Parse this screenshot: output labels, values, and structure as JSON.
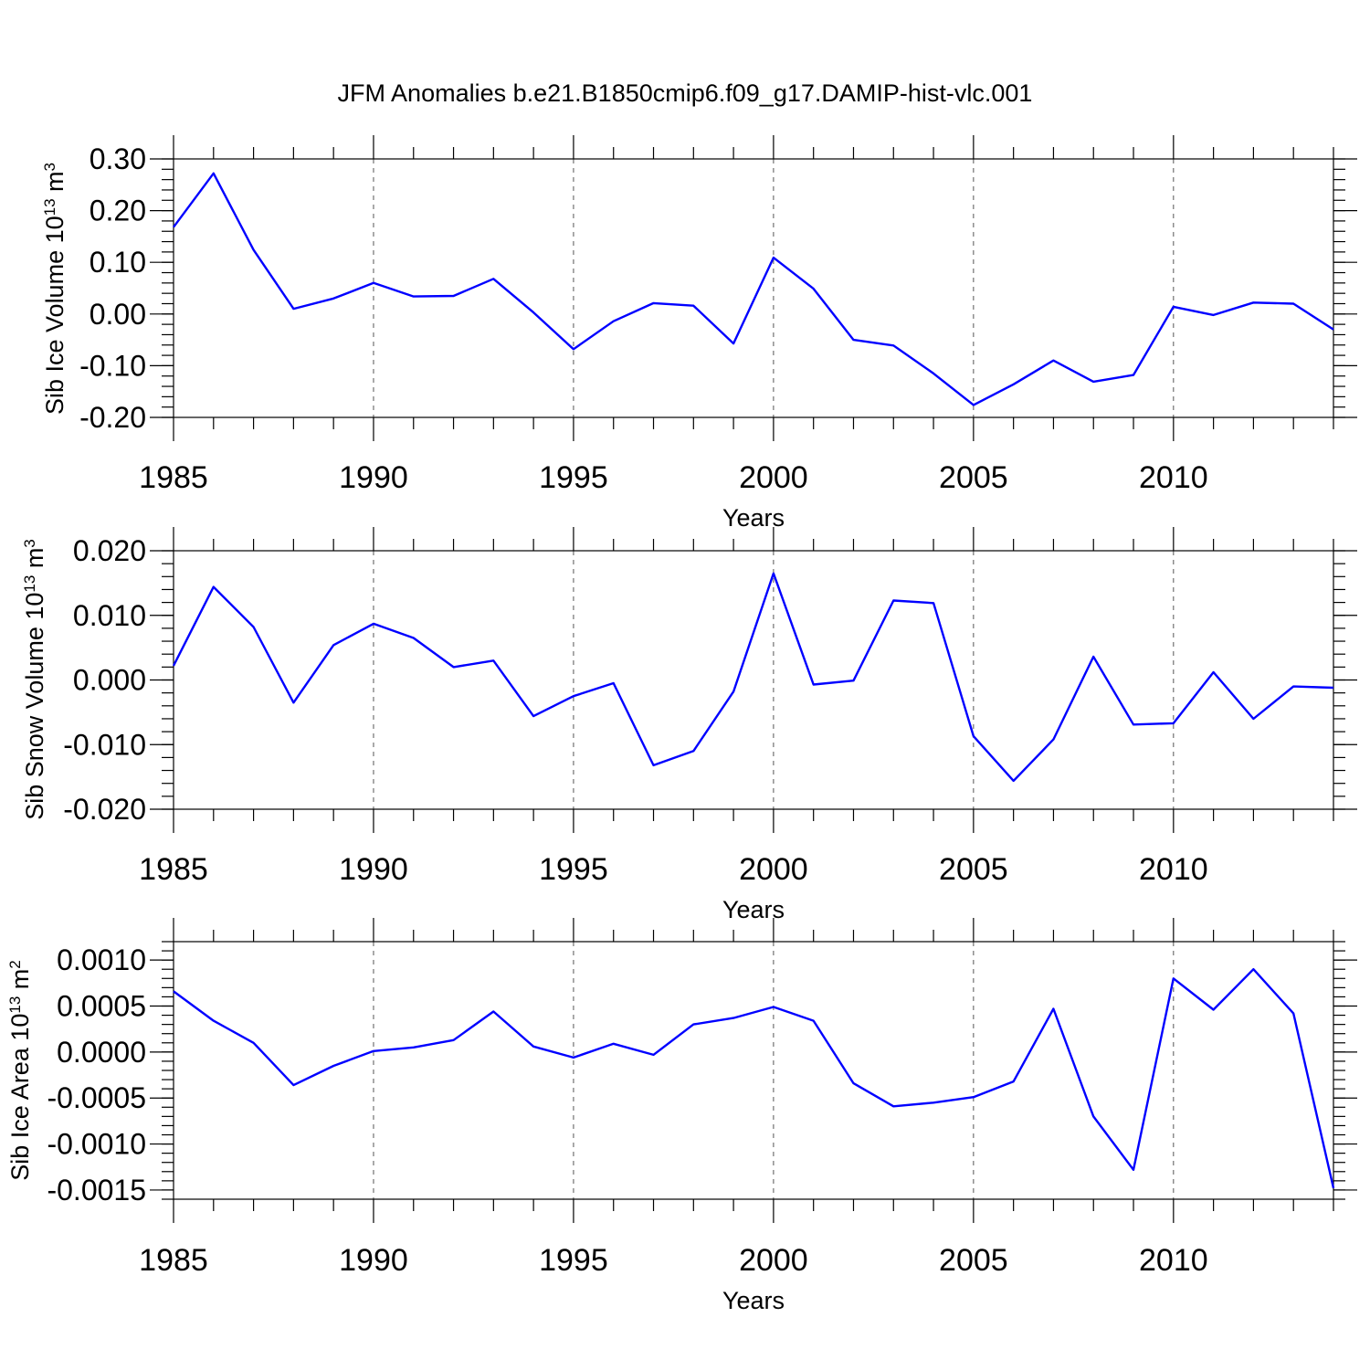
{
  "colors": {
    "line": "#0000ff",
    "axis": "#000000",
    "grid": "#555555"
  },
  "chart_data": [
    {
      "type": "line",
      "title": "JFM Anomalies b.e21.B1850cmip6.f09_g17.DAMIP-hist-vlc.001",
      "ylabel": "Sib Ice Volume 10",
      "ylabel_sup": "13",
      "ylabel_unit": " m",
      "ylabel_unit_sup": "3",
      "xlabel": "Years",
      "xlim": [
        1985,
        2014
      ],
      "ylim": [
        -0.2,
        0.3
      ],
      "xticks": [
        1985,
        1990,
        1995,
        2000,
        2005,
        2010
      ],
      "xtick_labels": [
        "1985",
        "1990",
        "1995",
        "2000",
        "2005",
        "2010"
      ],
      "yticks": [
        -0.2,
        -0.1,
        0.0,
        0.1,
        0.2,
        0.3
      ],
      "ytick_labels": [
        "-0.20",
        "-0.10",
        "0.00",
        "0.10",
        "0.20",
        "0.30"
      ],
      "minor_y_step": 0.02,
      "grid": "x-dashed",
      "x": [
        1985,
        1986,
        1987,
        1988,
        1989,
        1990,
        1991,
        1992,
        1993,
        1994,
        1995,
        1996,
        1997,
        1998,
        1999,
        2000,
        2001,
        2002,
        2003,
        2004,
        2005,
        2006,
        2007,
        2008,
        2009,
        2010,
        2011,
        2012,
        2013,
        2014
      ],
      "values": [
        0.168,
        0.272,
        0.124,
        0.01,
        0.03,
        0.06,
        0.034,
        0.035,
        0.068,
        0.003,
        -0.068,
        -0.014,
        0.021,
        0.016,
        -0.057,
        0.109,
        0.049,
        -0.05,
        -0.061,
        -0.115,
        -0.176,
        -0.136,
        -0.09,
        -0.131,
        -0.118,
        0.014,
        -0.002,
        0.022,
        0.02,
        -0.03
      ]
    },
    {
      "type": "line",
      "title": "",
      "ylabel": "Sib Snow Volume 10",
      "ylabel_sup": "13",
      "ylabel_unit": " m",
      "ylabel_unit_sup": "3",
      "xlabel": "Years",
      "xlim": [
        1985,
        2014
      ],
      "ylim": [
        -0.02,
        0.02
      ],
      "xticks": [
        1985,
        1990,
        1995,
        2000,
        2005,
        2010
      ],
      "xtick_labels": [
        "1985",
        "1990",
        "1995",
        "2000",
        "2005",
        "2010"
      ],
      "yticks": [
        -0.02,
        -0.01,
        0.0,
        0.01,
        0.02
      ],
      "ytick_labels": [
        "-0.020",
        "-0.010",
        "0.000",
        "0.010",
        "0.020"
      ],
      "minor_y_step": 0.002,
      "grid": "x-dashed",
      "x": [
        1985,
        1986,
        1987,
        1988,
        1989,
        1990,
        1991,
        1992,
        1993,
        1994,
        1995,
        1996,
        1997,
        1998,
        1999,
        2000,
        2001,
        2002,
        2003,
        2004,
        2005,
        2006,
        2007,
        2008,
        2009,
        2010,
        2011,
        2012,
        2013,
        2014
      ],
      "values": [
        0.0022,
        0.0144,
        0.0082,
        -0.0035,
        0.0054,
        0.0087,
        0.0065,
        0.002,
        0.003,
        -0.0056,
        -0.0025,
        -0.0005,
        -0.0132,
        -0.011,
        -0.0018,
        0.0165,
        -0.0007,
        -0.0001,
        0.0123,
        0.0119,
        -0.0087,
        -0.0156,
        -0.0092,
        0.0036,
        -0.0069,
        -0.0067,
        0.0012,
        -0.006,
        -0.001,
        -0.0012
      ]
    },
    {
      "type": "line",
      "title": "",
      "ylabel": "Sib Ice Area 10",
      "ylabel_sup": "13",
      "ylabel_unit": " m",
      "ylabel_unit_sup": "2",
      "xlabel": "Years",
      "xlim": [
        1985,
        2014
      ],
      "ylim": [
        -0.0016,
        0.0012
      ],
      "xticks": [
        1985,
        1990,
        1995,
        2000,
        2005,
        2010
      ],
      "xtick_labels": [
        "1985",
        "1990",
        "1995",
        "2000",
        "2005",
        "2010"
      ],
      "yticks": [
        -0.0015,
        -0.001,
        -0.0005,
        0.0,
        0.0005,
        0.001
      ],
      "ytick_labels": [
        "-0.0015",
        "-0.0010",
        "-0.0005",
        "0.0000",
        "0.0005",
        "0.0010"
      ],
      "minor_y_step": 0.0001,
      "grid": "x-dashed",
      "x": [
        1985,
        1986,
        1987,
        1988,
        1989,
        1990,
        1991,
        1992,
        1993,
        1994,
        1995,
        1996,
        1997,
        1998,
        1999,
        2000,
        2001,
        2002,
        2003,
        2004,
        2005,
        2006,
        2007,
        2008,
        2009,
        2010,
        2011,
        2012,
        2013,
        2014
      ],
      "values": [
        0.00066,
        0.00034,
        0.0001,
        -0.00036,
        -0.00015,
        1e-05,
        5e-05,
        0.00013,
        0.00044,
        6e-05,
        -6e-05,
        9e-05,
        -3e-05,
        0.0003,
        0.00037,
        0.00049,
        0.00034,
        -0.00034,
        -0.00059,
        -0.00055,
        -0.00049,
        -0.00032,
        0.00047,
        -0.0007,
        -0.00128,
        0.0008,
        0.00046,
        0.0009,
        0.00042,
        -0.00148
      ]
    }
  ]
}
